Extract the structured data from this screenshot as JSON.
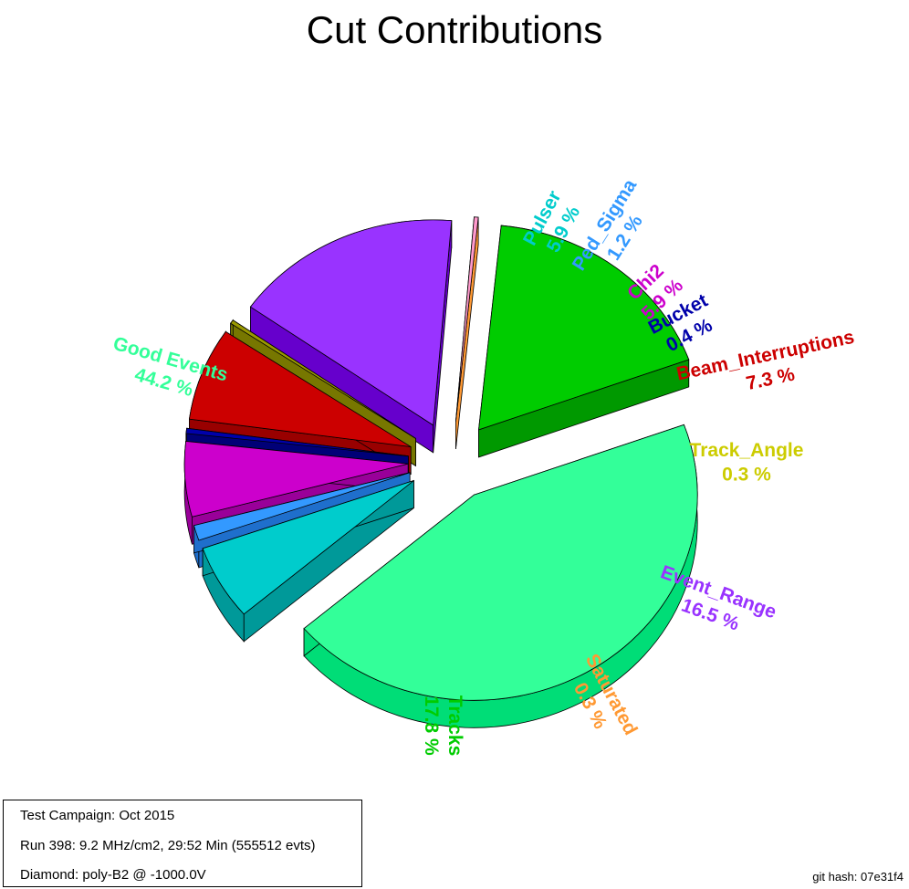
{
  "chart_data": {
    "type": "pie",
    "title": "Cut Contributions",
    "slices": [
      {
        "label": "Good Events",
        "value": 44.2,
        "value_label": "44.2 %",
        "color": "#33ff99",
        "side_color": "#00dd77",
        "label_color": "#33ff99"
      },
      {
        "label": "Pulser",
        "value": 5.9,
        "value_label": "5.9 %",
        "color": "#00cccc",
        "side_color": "#009999",
        "label_color": "#00cccc"
      },
      {
        "label": "Ped_Sigma",
        "value": 1.2,
        "value_label": "1.2 %",
        "color": "#3399ff",
        "side_color": "#1f6fcc",
        "label_color": "#3399ff"
      },
      {
        "label": "Chi2",
        "value": 5.9,
        "value_label": "5.9 %",
        "color": "#cc00cc",
        "side_color": "#990099",
        "label_color": "#cc00cc"
      },
      {
        "label": "Bucket",
        "value": 0.4,
        "value_label": "0.4 %",
        "color": "#0000aa",
        "side_color": "#000077",
        "label_color": "#0000aa"
      },
      {
        "label": "Beam_Interruptions",
        "value": 7.3,
        "value_label": "7.3 %",
        "color": "#cc0000",
        "side_color": "#990000",
        "label_color": "#cc0000"
      },
      {
        "label": "Track_Angle",
        "value": 0.3,
        "value_label": "0.3 %",
        "color": "#999900",
        "side_color": "#777700",
        "label_color": "#cccc00"
      },
      {
        "label": "Event_Range",
        "value": 16.5,
        "value_label": "16.5 %",
        "color": "#9933ff",
        "side_color": "#6600cc",
        "label_color": "#9933ff"
      },
      {
        "label": "Saturated",
        "value": 0.3,
        "value_label": "0.3 %",
        "color": "#ff99cc",
        "side_color": "#ff9933",
        "label_color": "#ff9933"
      },
      {
        "label": "Tracks",
        "value": 17.8,
        "value_label": "17.8 %",
        "color": "#00cc00",
        "side_color": "#009900",
        "label_color": "#00cc00"
      }
    ]
  },
  "info": {
    "campaign": "Test Campaign: Oct 2015",
    "run": "Run 398: 9.2 MHz/cm2, 29:52 Min (555512 evts)",
    "diamond": "Diamond: poly-B2 @ -1000.0V"
  },
  "git_hash": "git hash: 07e31f4"
}
